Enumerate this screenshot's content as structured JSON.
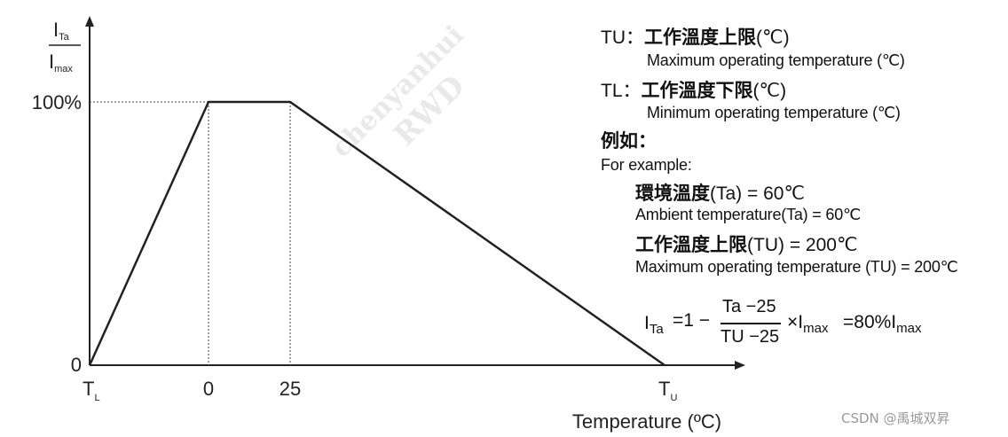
{
  "chart_data": {
    "type": "line",
    "series": [
      {
        "points": [
          {
            "x": "TL",
            "y": 0
          },
          {
            "x": "0",
            "y": 100
          },
          {
            "x": "25",
            "y": 100
          },
          {
            "x": "TU",
            "y": 0
          }
        ]
      }
    ],
    "x_ticks": [
      "0",
      "25"
    ],
    "x_tick_TL": {
      "main": "T",
      "sub": "L"
    },
    "x_tick_TU": {
      "main": "T",
      "sub": "U"
    },
    "y_ticks": [
      "0",
      "100%"
    ],
    "xlabel": "Temperature (ºC)",
    "ylabel": {
      "numerator_main": "I",
      "numerator_sub": "Ta",
      "denominator_main": "I",
      "denominator_sub": "max"
    },
    "reference_lines": "dotted guides at 100% and at x = 0 and x = 25",
    "grid": false,
    "line_color": "#222222"
  },
  "watermark": {
    "line1": "chenyanhui",
    "line2": "RWD"
  },
  "notes": {
    "tu_label": "TU：",
    "tu_cjk": "工作溫度上限",
    "tu_unit": "(℃)",
    "tu_en": "Maximum operating temperature (℃)",
    "tl_label": "TL：",
    "tl_cjk": "工作溫度下限",
    "tl_unit": "(℃)",
    "tl_en": "Minimum operating temperature (℃)",
    "example_cjk": "例如：",
    "example_en": "For example:",
    "ta_cjk": "環境溫度",
    "ta_val": "(Ta) = 60℃",
    "ta_en": "Ambient temperature(Ta) = 60℃",
    "tu2_cjk": "工作溫度上限",
    "tu2_val": "(TU) = 200℃",
    "tu2_en": "Maximum operating temperature (TU) = 200℃"
  },
  "formula": {
    "lhs": "I",
    "lhs_sub": "Ta",
    "eq1": "=1 −",
    "num": "Ta −25",
    "den": "TU −25",
    "times": "×I",
    "times_sub": "max",
    "result": "=80%I",
    "result_sub": "max"
  },
  "credit": "CSDN @禹城双昇"
}
